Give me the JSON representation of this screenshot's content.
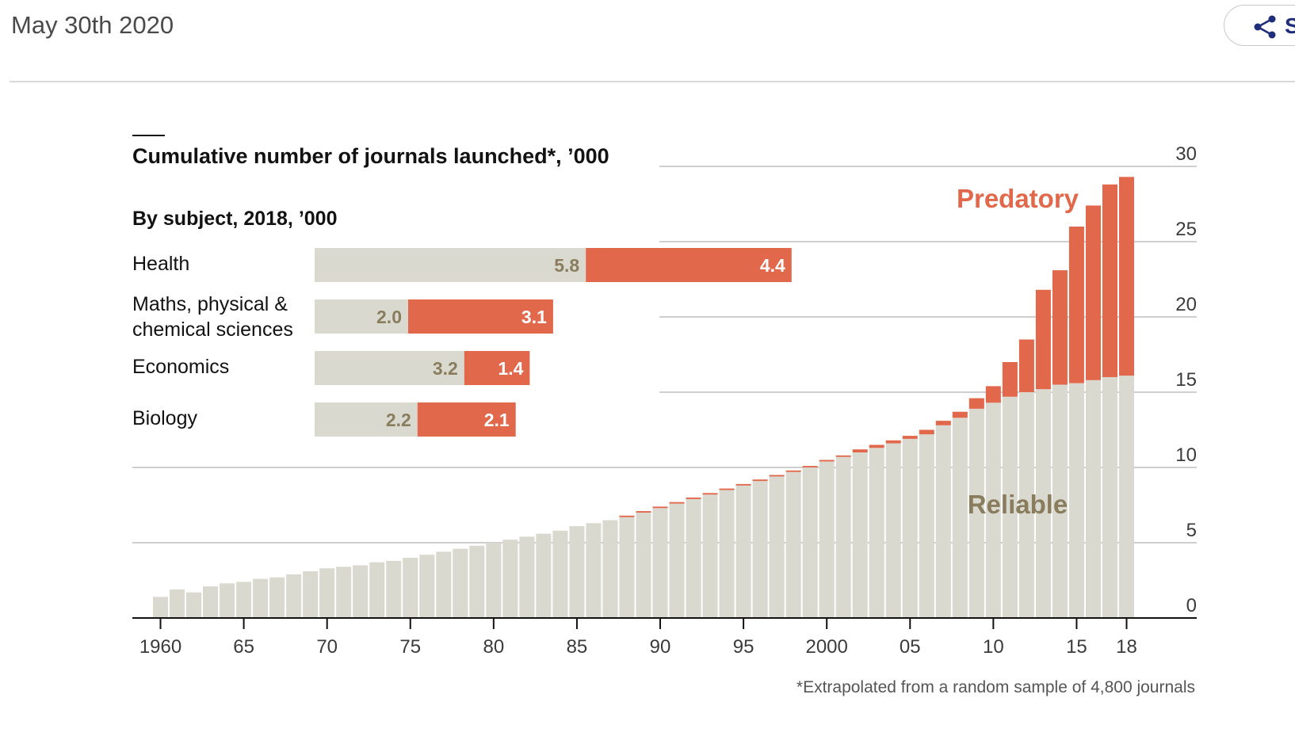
{
  "header": {
    "date": "May 30th 2020",
    "share_label": "S"
  },
  "colors": {
    "reliable": "#d9d9d0",
    "predatory": "#e2684c",
    "reliable_text": "#8a7d5e",
    "predatory_text": "#e2684c",
    "grid": "#cfcfcf"
  },
  "chart_data": [
    {
      "type": "bar",
      "stacked": true,
      "title": "Cumulative number of journals launched*, ’000",
      "x": [
        1960,
        1961,
        1962,
        1963,
        1964,
        1965,
        1966,
        1967,
        1968,
        1969,
        1970,
        1971,
        1972,
        1973,
        1974,
        1975,
        1976,
        1977,
        1978,
        1979,
        1980,
        1981,
        1982,
        1983,
        1984,
        1985,
        1986,
        1987,
        1988,
        1989,
        1990,
        1991,
        1992,
        1993,
        1994,
        1995,
        1996,
        1997,
        1998,
        1999,
        2000,
        2001,
        2002,
        2003,
        2004,
        2005,
        2006,
        2007,
        2008,
        2009,
        2010,
        2011,
        2012,
        2013,
        2014,
        2015,
        2016,
        2017,
        2018
      ],
      "x_tick_labels": [
        {
          "x": 1960,
          "label": "1960"
        },
        {
          "x": 1965,
          "label": "65"
        },
        {
          "x": 1970,
          "label": "70"
        },
        {
          "x": 1975,
          "label": "75"
        },
        {
          "x": 1980,
          "label": "80"
        },
        {
          "x": 1985,
          "label": "85"
        },
        {
          "x": 1990,
          "label": "90"
        },
        {
          "x": 1995,
          "label": "95"
        },
        {
          "x": 2000,
          "label": "2000"
        },
        {
          "x": 2005,
          "label": "05"
        },
        {
          "x": 2010,
          "label": "10"
        },
        {
          "x": 2015,
          "label": "15"
        },
        {
          "x": 2018,
          "label": "18"
        }
      ],
      "y_ticks": [
        0,
        5,
        10,
        15,
        20,
        25,
        30
      ],
      "ylim": [
        0,
        30
      ],
      "series": [
        {
          "name": "Reliable",
          "values": [
            1.4,
            1.9,
            1.7,
            2.1,
            2.3,
            2.4,
            2.6,
            2.7,
            2.9,
            3.1,
            3.3,
            3.4,
            3.5,
            3.7,
            3.8,
            4.0,
            4.2,
            4.4,
            4.6,
            4.8,
            5.0,
            5.2,
            5.4,
            5.6,
            5.8,
            6.1,
            6.3,
            6.5,
            6.7,
            7.0,
            7.3,
            7.6,
            7.9,
            8.2,
            8.5,
            8.8,
            9.1,
            9.4,
            9.7,
            10.0,
            10.4,
            10.7,
            11.0,
            11.3,
            11.6,
            11.9,
            12.2,
            12.8,
            13.3,
            13.9,
            14.3,
            14.7,
            15.0,
            15.2,
            15.5,
            15.6,
            15.8,
            16.0,
            16.1
          ]
        },
        {
          "name": "Predatory",
          "values": [
            0,
            0,
            0,
            0,
            0,
            0,
            0,
            0,
            0,
            0,
            0,
            0,
            0,
            0,
            0,
            0,
            0,
            0,
            0,
            0,
            0,
            0,
            0,
            0,
            0,
            0,
            0,
            0,
            0.1,
            0.1,
            0.1,
            0.1,
            0.1,
            0.1,
            0.1,
            0.1,
            0.1,
            0.1,
            0.1,
            0.1,
            0.1,
            0.1,
            0.2,
            0.2,
            0.2,
            0.2,
            0.3,
            0.3,
            0.4,
            0.7,
            1.1,
            2.3,
            3.5,
            6.6,
            7.6,
            10.4,
            11.6,
            12.8,
            13.2
          ]
        }
      ],
      "annotations": [
        "Predatory",
        "Reliable"
      ],
      "footnote": "*Extrapolated from a random sample of 4,800 journals"
    },
    {
      "type": "bar",
      "stacked": true,
      "orientation": "horizontal",
      "title": "By subject, 2018, ’000",
      "categories": [
        "Health",
        "Maths, physical & chemical sciences",
        "Economics",
        "Biology"
      ],
      "category_lines": [
        [
          "Health"
        ],
        [
          "Maths, physical &",
          "chemical sciences"
        ],
        [
          "Economics"
        ],
        [
          "Biology"
        ]
      ],
      "series": [
        {
          "name": "Reliable",
          "values": [
            5.8,
            2.0,
            3.2,
            2.2
          ],
          "labels": [
            "5.8",
            "2.0",
            "3.2",
            "2.2"
          ]
        },
        {
          "name": "Predatory",
          "values": [
            4.4,
            3.1,
            1.4,
            2.1
          ],
          "labels": [
            "4.4",
            "3.1",
            "1.4",
            "2.1"
          ]
        }
      ]
    }
  ]
}
